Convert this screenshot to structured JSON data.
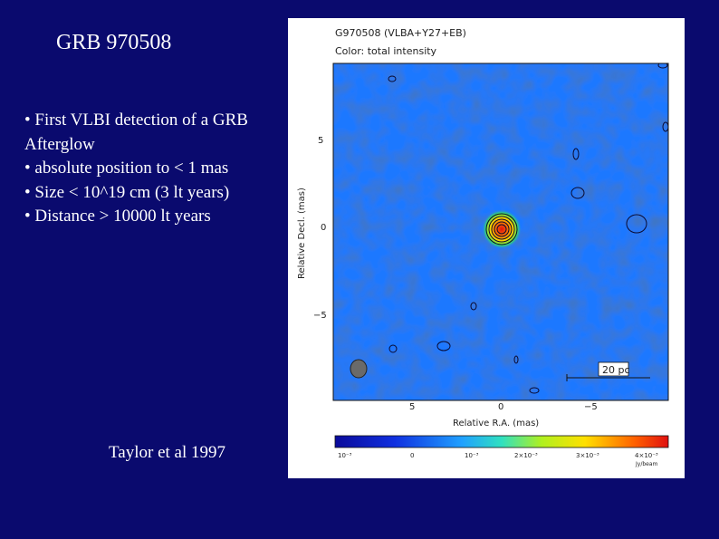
{
  "slide": {
    "title": "GRB 970508",
    "bullets": [
      "• First VLBI detection of a GRB",
      "Afterglow",
      "• absolute position to < 1 mas",
      "• Size < 10^19 cm (3 lt years)",
      "• Distance > 10000 lt years"
    ],
    "credit": "Taylor et al 1997"
  },
  "figure": {
    "header_line1": "G970508 (VLBA+Y27+EB)",
    "header_line2": "Color: total intensity",
    "ylabel": "Relative Decl. (mas)",
    "xlabel": "Relative R.A. (mas)",
    "y_ticks": [
      "5",
      "0",
      "−5"
    ],
    "x_ticks": [
      "5",
      "0",
      "−5"
    ],
    "scale_bar_label": "20 pc",
    "colorbar_ticks": [
      "10⁻³",
      "0",
      "10⁻³",
      "2×10⁻³",
      "3×10⁻³",
      "4×10⁻³"
    ],
    "colorbar_unit": "Jy/beam",
    "colors": {
      "background": "#0a0a6e",
      "map_base": "#1e78ff",
      "peak": "#e01010"
    }
  }
}
